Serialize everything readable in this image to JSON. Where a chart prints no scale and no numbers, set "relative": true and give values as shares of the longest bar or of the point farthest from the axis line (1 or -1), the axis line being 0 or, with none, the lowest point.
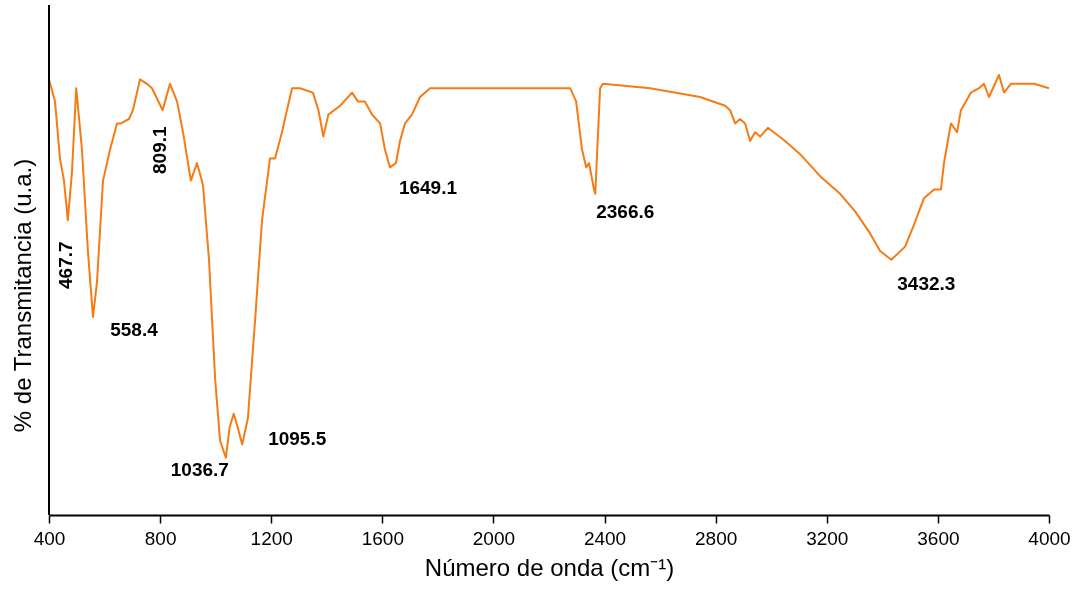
{
  "chart_data": {
    "type": "line",
    "relative": true,
    "xlabel": "Número de onda (cm⁻¹)",
    "ylabel": "% de Transmitancia (u.a.)",
    "xlim": [
      400,
      4000
    ],
    "xticks": [
      400,
      800,
      1200,
      1600,
      2000,
      2400,
      2800,
      3200,
      3600,
      4000
    ],
    "grid": false,
    "marker": "none",
    "line_style": "solid",
    "series": [
      {
        "color": "#f57c14",
        "x": [
          400,
          421.6,
          439.6,
          453.9,
          467.7,
          482.8,
          498,
          518.8,
          540,
          558.4,
          572.8,
          594.4,
          619.6,
          644.8,
          659,
          688,
          702,
          727.6,
          752.8,
          770.8,
          809.1,
          835.6,
          861,
          882.4,
          910.7,
          932.8,
          954.4,
          976,
          998,
          1015.6,
          1036.7,
          1050.4,
          1065,
          1079,
          1095.5,
          1116,
          1141.6,
          1167,
          1195.6,
          1213.6,
          1238.8,
          1253,
          1274.8,
          1303.6,
          1350,
          1370,
          1387.6,
          1405.6,
          1448,
          1491,
          1512,
          1537,
          1563,
          1592,
          1609.6,
          1627.6,
          1649.1,
          1663.6,
          1681.6,
          1706.8,
          1735.6,
          1772,
          1844,
          2024,
          2204,
          2276,
          2297.6,
          2319,
          2334,
          2344,
          2362,
          2366.6,
          2384,
          2394,
          2564,
          2744,
          2834,
          2852,
          2870,
          2888,
          2906,
          2924,
          2942,
          2960,
          2988,
          3050,
          3104,
          3176,
          3248,
          3302,
          3356,
          3392,
          3432.3,
          3482,
          3514,
          3550,
          3586,
          3611,
          3622,
          3647,
          3669,
          3683,
          3701,
          3719,
          3748,
          3766,
          3784,
          3820,
          3838,
          3863,
          3892,
          3946,
          4000
        ],
        "values": [
          0.99,
          0.94,
          0.81,
          0.76,
          0.67,
          0.78,
          0.97,
          0.83,
          0.6,
          0.45,
          0.53,
          0.76,
          0.83,
          0.89,
          0.89,
          0.9,
          0.92,
          0.99,
          0.98,
          0.97,
          0.92,
          0.98,
          0.94,
          0.87,
          0.76,
          0.8,
          0.75,
          0.58,
          0.31,
          0.17,
          0.13,
          0.2,
          0.23,
          0.2,
          0.16,
          0.22,
          0.44,
          0.67,
          0.81,
          0.81,
          0.87,
          0.91,
          0.97,
          0.97,
          0.96,
          0.92,
          0.86,
          0.91,
          0.93,
          0.96,
          0.94,
          0.94,
          0.91,
          0.89,
          0.83,
          0.79,
          0.8,
          0.85,
          0.89,
          0.91,
          0.95,
          0.97,
          0.97,
          0.97,
          0.97,
          0.97,
          0.94,
          0.83,
          0.79,
          0.8,
          0.74,
          0.73,
          0.97,
          0.98,
          0.97,
          0.95,
          0.93,
          0.92,
          0.89,
          0.9,
          0.89,
          0.85,
          0.87,
          0.86,
          0.88,
          0.85,
          0.82,
          0.77,
          0.73,
          0.69,
          0.64,
          0.6,
          0.58,
          0.61,
          0.66,
          0.72,
          0.74,
          0.74,
          0.8,
          0.89,
          0.87,
          0.92,
          0.94,
          0.96,
          0.97,
          0.98,
          0.95,
          1,
          0.96,
          0.98,
          0.98,
          0.98,
          0.97
        ]
      }
    ],
    "annotations": [
      {
        "text": "467.7",
        "x": 467.7,
        "y": 0.67
      },
      {
        "text": "558.4",
        "x": 558.4,
        "y": 0.45
      },
      {
        "text": "809.1",
        "x": 809.1,
        "y": 0.92
      },
      {
        "text": "1036.7",
        "x": 1036.7,
        "y": 0.13
      },
      {
        "text": "1095.5",
        "x": 1095.5,
        "y": 0.16
      },
      {
        "text": "1649.1",
        "x": 1649.1,
        "y": 0.8
      },
      {
        "text": "2366.6",
        "x": 2366.6,
        "y": 0.73
      },
      {
        "text": "3432.3",
        "x": 3432.3,
        "y": 0.58
      }
    ]
  }
}
